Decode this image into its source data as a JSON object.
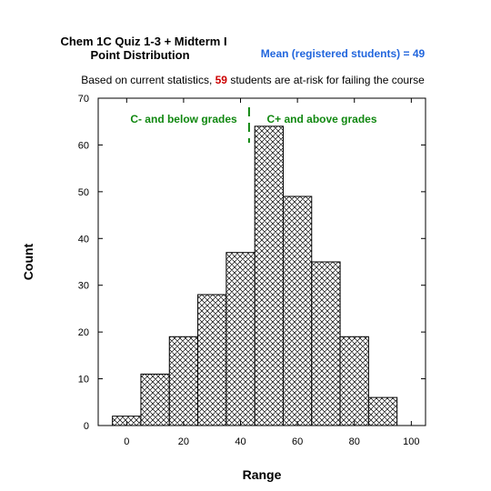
{
  "chart_data": {
    "type": "bar",
    "title_line1": "Chem 1C Quiz 1-3 + Midterm I",
    "title_line2": "Point Distribution",
    "mean_label": "Mean (registered students) = 49",
    "subtitle_before": "Based on current statistics, ",
    "subtitle_number": "59",
    "subtitle_after": " students are at-risk for failing the course",
    "xlabel": "Range",
    "ylabel": "Count",
    "xlim": [
      -10,
      105
    ],
    "ylim": [
      0,
      70
    ],
    "xticks": [
      0,
      20,
      40,
      60,
      80,
      100
    ],
    "yticks": [
      0,
      10,
      20,
      30,
      40,
      50,
      60,
      70
    ],
    "bin_width": 10,
    "bins": [
      {
        "x": 0,
        "value": 2
      },
      {
        "x": 10,
        "value": 11
      },
      {
        "x": 20,
        "value": 19
      },
      {
        "x": 30,
        "value": 28
      },
      {
        "x": 40,
        "value": 37
      },
      {
        "x": 50,
        "value": 64
      },
      {
        "x": 60,
        "value": 49
      },
      {
        "x": 70,
        "value": 35
      },
      {
        "x": 80,
        "value": 19
      },
      {
        "x": 90,
        "value": 6
      }
    ],
    "cutoff_x": 43,
    "left_region_label": "C- and below grades",
    "right_region_label": "C+ and above grades",
    "colors": {
      "mean": "#2266dd",
      "highlight": "#cc0000",
      "region": "#118811",
      "bar_fill_pattern": "crosshatch",
      "axis": "#000000"
    }
  }
}
